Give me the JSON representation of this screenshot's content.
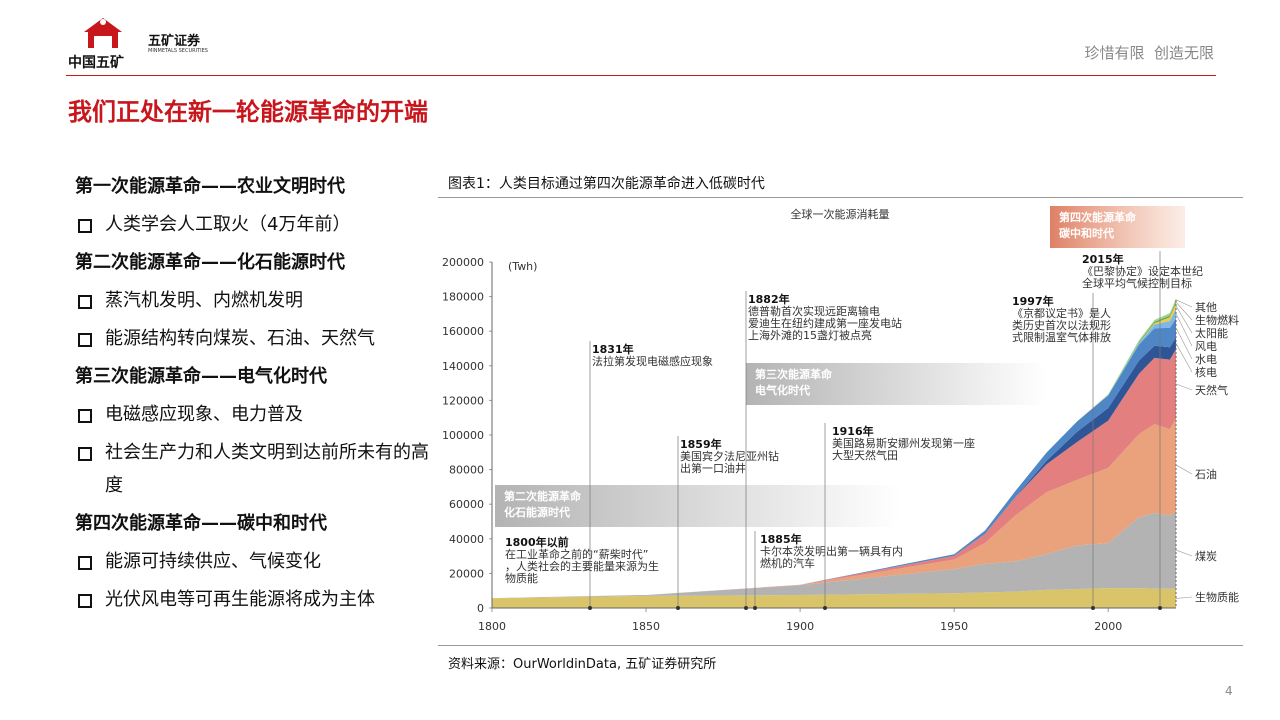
{
  "header": {
    "company": "中国五矿",
    "brand": "五矿证券",
    "brand_en": "MINMETALS SECURITIES",
    "slogan": "珍惜有限  创造无限",
    "title": "我们正处在新一轮能源革命的开端"
  },
  "sections": [
    {
      "heading": "第一次能源革命——农业文明时代",
      "items": [
        "人类学会人工取火（4万年前）"
      ]
    },
    {
      "heading": "第二次能源革命——化石能源时代",
      "items": [
        "蒸汽机发明、内燃机发明",
        "能源结构转向煤炭、石油、天然气"
      ]
    },
    {
      "heading": "第三次能源革命——电气化时代",
      "items": [
        "电磁感应现象、电力普及",
        "社会生产力和人类文明到达前所未有的高度"
      ]
    },
    {
      "heading": "第四次能源革命——碳中和时代",
      "items": [
        "能源可持续供应、气候变化",
        "光伏风电等可再生能源将成为主体"
      ]
    }
  ],
  "chart_caption": "图表1：人类目标通过第四次能源革命进入低碳时代",
  "source": "资料来源：OurWorldinData, 五矿证券研究所",
  "page_number": 4,
  "chart_data": {
    "type": "area",
    "title": "全球一次能源消耗量",
    "y_unit": "(Twh)",
    "x": [
      1800,
      1850,
      1900,
      1950,
      1960,
      1970,
      1980,
      1990,
      2000,
      2010,
      2015,
      2020,
      2022
    ],
    "xlim": [
      1800,
      2022
    ],
    "xticks": [
      1800,
      1850,
      1900,
      1950,
      2000
    ],
    "ylim": [
      0,
      200000
    ],
    "yticks": [
      0,
      20000,
      40000,
      60000,
      80000,
      100000,
      120000,
      140000,
      160000,
      180000,
      200000
    ],
    "series": [
      {
        "name": "生物质能",
        "color": "#d9c46a",
        "values": [
          5600,
          7000,
          7500,
          8500,
          9000,
          9500,
          10500,
          11000,
          11500,
          11500,
          11100,
          11100,
          11100
        ]
      },
      {
        "name": "煤炭",
        "color": "#b3b3b3",
        "values": [
          100,
          550,
          5700,
          14000,
          16600,
          17500,
          20700,
          25200,
          26000,
          41000,
          43800,
          42300,
          44800
        ]
      },
      {
        "name": "石油",
        "color": "#e9a27c",
        "values": [
          0,
          0,
          180,
          5500,
          12000,
          26700,
          35800,
          37900,
          43500,
          48000,
          51400,
          50000,
          53600
        ]
      },
      {
        "name": "天然气",
        "color": "#e47f7f",
        "values": [
          0,
          0,
          60,
          2100,
          5200,
          10600,
          16100,
          22000,
          27300,
          34900,
          38300,
          40200,
          40100
        ]
      },
      {
        "name": "核电",
        "color": "#2f5597",
        "values": [
          0,
          0,
          0,
          0,
          0,
          230,
          2000,
          5900,
          7300,
          7600,
          7000,
          7100,
          6800
        ]
      },
      {
        "name": "水电",
        "color": "#4f86c6",
        "values": [
          0,
          0,
          0,
          950,
          1900,
          3400,
          4800,
          6000,
          7300,
          9300,
          10100,
          11200,
          11000
        ]
      },
      {
        "name": "风电",
        "color": "#7db8e8",
        "values": [
          0,
          0,
          0,
          0,
          0,
          0,
          0,
          0,
          80,
          900,
          2200,
          4000,
          5500
        ]
      },
      {
        "name": "太阳能",
        "color": "#f2c94c",
        "values": [
          0,
          0,
          0,
          0,
          0,
          0,
          0,
          0,
          0,
          90,
          700,
          2200,
          3400
        ]
      },
      {
        "name": "生物燃料",
        "color": "#4caf50",
        "values": [
          0,
          0,
          0,
          0,
          0,
          0,
          0,
          0,
          100,
          600,
          800,
          1000,
          1100
        ]
      },
      {
        "name": "其他",
        "color": "#a9d18e",
        "values": [
          0,
          0,
          0,
          0,
          0,
          0,
          0,
          0,
          400,
          900,
          1100,
          1400,
          1500
        ]
      }
    ],
    "eras": [
      {
        "lines": [
          "第二次能源革命",
          "化石能源时代"
        ]
      },
      {
        "lines": [
          "第三次能源革命",
          "电气化时代"
        ]
      },
      {
        "lines": [
          "第四次能源革命",
          "碳中和时代"
        ]
      }
    ],
    "annotations": [
      {
        "lines": [
          "1800年以前",
          "在工业革命之前的“薪柴时代”",
          "，人类社会的主要能量来源为生",
          "物质能"
        ]
      },
      {
        "lines": [
          "1831年",
          "法拉第发现电磁感应现象"
        ]
      },
      {
        "lines": [
          "1859年",
          "美国宾夕法尼亚州钻",
          "出第一口油井"
        ]
      },
      {
        "lines": [
          "1882年",
          "德普勒首次实现远距离输电",
          "爱迪生在纽约建成第一座发电站",
          "上海外滩的15盏灯被点亮"
        ]
      },
      {
        "lines": [
          "1885年",
          "卡尔本茨发明出第一辆具有内",
          "燃机的汽车"
        ]
      },
      {
        "lines": [
          "1916年",
          "美国路易斯安娜州发现第一座",
          "大型天然气田"
        ]
      },
      {
        "lines": [
          "1997年",
          "《京都议定书》是人",
          "类历史首次以法规形",
          "式限制温室气体排放"
        ]
      },
      {
        "lines": [
          "2015年",
          "《巴黎协定》设定本世纪",
          "全球平均气候控制目标"
        ]
      }
    ]
  }
}
